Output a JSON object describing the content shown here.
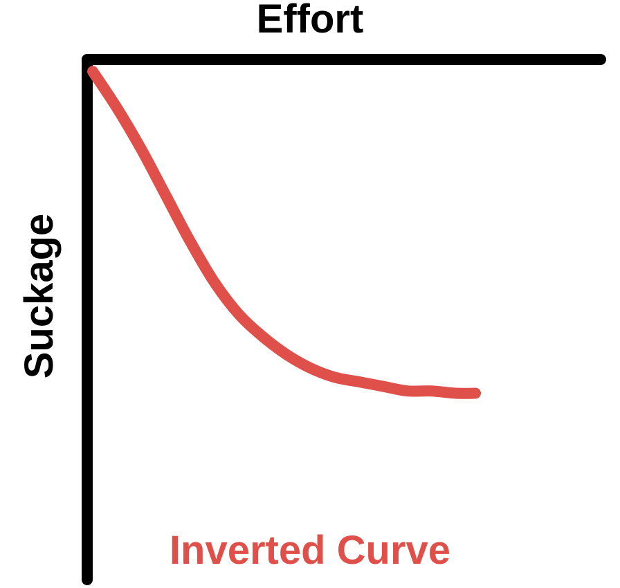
{
  "chart_data": {
    "type": "line",
    "title": "Inverted Curve",
    "xlabel": "Effort",
    "ylabel": "Suckage",
    "x_axis_position": "top",
    "y_direction": "increasing-down",
    "grid": false,
    "xlim": [
      0,
      10
    ],
    "ylim": [
      0,
      10
    ],
    "series": [
      {
        "color": "#e0504a",
        "x": [
          0.0,
          0.5,
          1.0,
          1.5,
          2.0,
          2.5,
          3.0,
          3.5,
          4.0,
          4.5,
          5.0,
          5.5,
          6.0,
          6.5,
          7.0,
          7.5,
          7.9
        ],
        "y": [
          0.2,
          1.0,
          1.9,
          2.9,
          3.9,
          4.8,
          5.5,
          6.0,
          6.4,
          6.7,
          6.9,
          7.0,
          7.1,
          7.2,
          7.2,
          7.25,
          7.25
        ]
      }
    ],
    "colors": {
      "axis": "#000000",
      "curve": "#e0504a",
      "title": "#e0504a",
      "labels": "#000000"
    }
  }
}
